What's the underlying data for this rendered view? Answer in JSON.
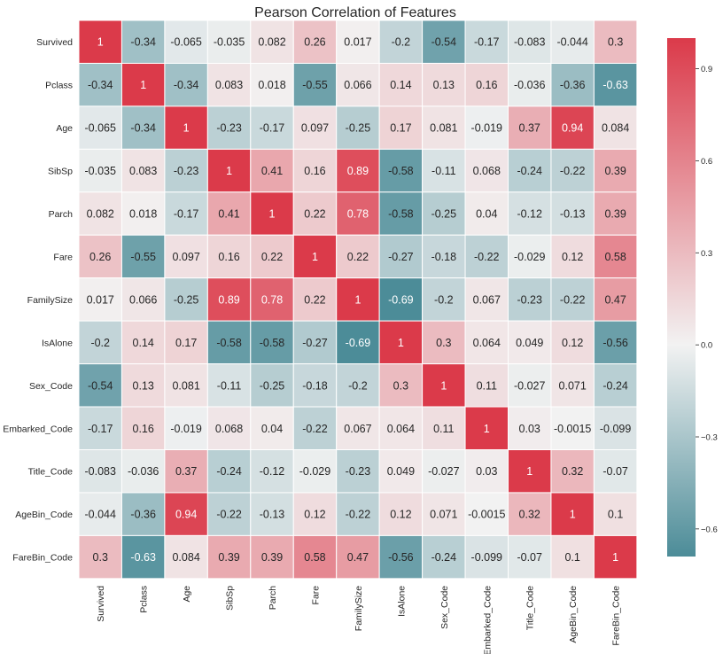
{
  "chart_data": {
    "type": "heatmap",
    "title": "Pearson Correlation of Features",
    "xlabel": "",
    "ylabel": "",
    "labels": [
      "Survived",
      "Pclass",
      "Age",
      "SibSp",
      "Parch",
      "Fare",
      "FamilySize",
      "IsAlone",
      "Sex_Code",
      "Embarked_Code",
      "Title_Code",
      "AgeBin_Code",
      "FareBin_Code"
    ],
    "matrix": [
      [
        1,
        -0.34,
        -0.065,
        -0.035,
        0.082,
        0.26,
        0.017,
        -0.2,
        -0.54,
        -0.17,
        -0.083,
        -0.044,
        0.3
      ],
      [
        -0.34,
        1,
        -0.34,
        0.083,
        0.018,
        -0.55,
        0.066,
        0.14,
        0.13,
        0.16,
        -0.036,
        -0.36,
        -0.63
      ],
      [
        -0.065,
        -0.34,
        1,
        -0.23,
        -0.17,
        0.097,
        -0.25,
        0.17,
        0.081,
        -0.019,
        0.37,
        0.94,
        0.084
      ],
      [
        -0.035,
        0.083,
        -0.23,
        1,
        0.41,
        0.16,
        0.89,
        -0.58,
        -0.11,
        0.068,
        -0.24,
        -0.22,
        0.39
      ],
      [
        0.082,
        0.018,
        -0.17,
        0.41,
        1,
        0.22,
        0.78,
        -0.58,
        -0.25,
        0.04,
        -0.12,
        -0.13,
        0.39
      ],
      [
        0.26,
        -0.55,
        0.097,
        0.16,
        0.22,
        1,
        0.22,
        -0.27,
        -0.18,
        -0.22,
        -0.029,
        0.12,
        0.58
      ],
      [
        0.017,
        0.066,
        -0.25,
        0.89,
        0.78,
        0.22,
        1,
        -0.69,
        -0.2,
        0.067,
        -0.23,
        -0.22,
        0.47
      ],
      [
        -0.2,
        0.14,
        0.17,
        -0.58,
        -0.58,
        -0.27,
        -0.69,
        1,
        0.3,
        0.064,
        0.049,
        0.12,
        -0.56
      ],
      [
        -0.54,
        0.13,
        0.081,
        -0.11,
        -0.25,
        -0.18,
        -0.2,
        0.3,
        1,
        0.11,
        -0.027,
        0.071,
        -0.24
      ],
      [
        -0.17,
        0.16,
        -0.019,
        0.068,
        0.04,
        -0.22,
        0.067,
        0.064,
        0.11,
        1,
        0.03,
        -0.0015,
        -0.099
      ],
      [
        -0.083,
        -0.036,
        0.37,
        -0.24,
        -0.12,
        -0.029,
        -0.23,
        0.049,
        -0.027,
        0.03,
        1,
        0.32,
        -0.07
      ],
      [
        -0.044,
        -0.36,
        0.94,
        -0.22,
        -0.13,
        0.12,
        -0.22,
        0.12,
        0.071,
        -0.0015,
        0.32,
        1,
        0.1
      ],
      [
        0.3,
        -0.63,
        0.084,
        0.39,
        0.39,
        0.58,
        0.47,
        -0.56,
        -0.24,
        -0.099,
        -0.07,
        0.1,
        1
      ]
    ],
    "colorbar": {
      "vmin": -0.69,
      "vmax": 1,
      "ticks": [
        0.9,
        0.6,
        0.3,
        0.0,
        -0.3,
        -0.6
      ],
      "tick_labels": [
        "0.9",
        "0.6",
        "0.3",
        "0.0",
        "−0.3",
        "−0.6"
      ]
    },
    "colors": {
      "negative": "#4c8c98",
      "center": "#f2f2f2",
      "positive": "#db3a4a",
      "grid_line": "#ffffff",
      "text": "#262626"
    }
  }
}
